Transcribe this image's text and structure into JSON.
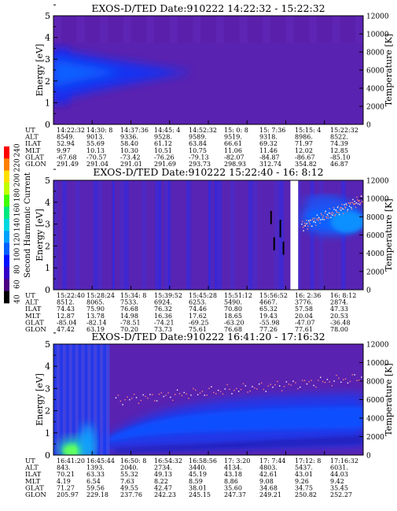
{
  "colorbar": {
    "title": "Second Harmonic Current",
    "ticks": [
      "40",
      "60",
      "80",
      "100",
      "120",
      "140",
      "160",
      "180",
      "200",
      "220",
      "240"
    ],
    "colors": [
      "#000000",
      "#4a0080",
      "#3000c8",
      "#0010ff",
      "#0060ff",
      "#00a0ff",
      "#00d8e0",
      "#00e880",
      "#40ff00",
      "#c0ff00",
      "#ffe000",
      "#ff8000",
      "#ff0000"
    ]
  },
  "panels": [
    {
      "title": "EXOS-D/TED   Date:910222   14:22:32 - 15:22:32",
      "y_label": "Energy [eV]",
      "y2_label": "Temperature [K]",
      "y_ticks": [
        "0",
        "1",
        "2",
        "3",
        "4",
        "5"
      ],
      "y2_ticks": [
        "0",
        "2000",
        "4000",
        "6000",
        "8000",
        "10000",
        "12000"
      ],
      "row_labels": [
        "UT",
        "ALT",
        "ILAT",
        "MLT",
        "GLAT",
        "GLON"
      ],
      "columns": [
        [
          "14:22:32",
          "8549.",
          "52.94",
          "9.97",
          "-67.68",
          "291.49"
        ],
        [
          "14:30: 8",
          "9013.",
          "55.69",
          "10.13",
          "-70.57",
          "291.04"
        ],
        [
          "14:37:36",
          "9336.",
          "58.40",
          "10.30",
          "-73.42",
          "291.01"
        ],
        [
          "14:45: 4",
          "9528.",
          "61.12",
          "10.51",
          "-76.26",
          "291.69"
        ],
        [
          "14:52:32",
          "9589.",
          "63.84",
          "10.75",
          "-79.13",
          "293.73"
        ],
        [
          "15: 0: 8",
          "9519.",
          "66.61",
          "11.06",
          "-82.07",
          "298.93"
        ],
        [
          "15: 7:36",
          "9318.",
          "69.32",
          "11.46",
          "-84.87",
          "312.74"
        ],
        [
          "15:15: 4",
          "8986.",
          "71.97",
          "12.02",
          "-86.67",
          "354.82"
        ],
        [
          "15:22:32",
          "8522.",
          "74.39",
          "12.85",
          "-85.10",
          "46.87"
        ]
      ]
    },
    {
      "title": "EXOS-D/TED   Date:910222   15:22:40 - 16: 8:12",
      "y_label": "Energy [eV]",
      "y2_label": "Temperature [K]",
      "y_ticks": [
        "0",
        "1",
        "2",
        "3",
        "4",
        "5"
      ],
      "y2_ticks": [
        "0",
        "2000",
        "4000",
        "6000",
        "8000",
        "10000",
        "12000"
      ],
      "row_labels": [
        "UT",
        "ALT",
        "ILAT",
        "MLT",
        "GLAT",
        "GLON"
      ],
      "columns": [
        [
          "15:22:40",
          "8512.",
          "74.43",
          "12.87",
          "-85.04",
          "47.42"
        ],
        [
          "15:28:24",
          "8065.",
          "75.90",
          "13.78",
          "-82.14",
          "63.19"
        ],
        [
          "15:34: 8",
          "7533.",
          "76.68",
          "14.98",
          "-78.51",
          "70.20"
        ],
        [
          "15:39:52",
          "6924.",
          "76.32",
          "16.36",
          "-74.21",
          "73.73"
        ],
        [
          "15:45:28",
          "6253.",
          "74.46",
          "17.62",
          "-69.25",
          "75.61"
        ],
        [
          "15:51:12",
          "5490.",
          "70.80",
          "18.65",
          "-63.20",
          "76.68"
        ],
        [
          "15:56:52",
          "4667.",
          "65.32",
          "19.43",
          "-55.98",
          "77.26"
        ],
        [
          "16: 2:36",
          "3776.",
          "57.58",
          "20.04",
          "-47.07",
          "77.61"
        ],
        [
          "16: 8:12",
          "2874.",
          "47.33",
          "20.53",
          "-36.48",
          "78.00"
        ]
      ]
    },
    {
      "title": "EXOS-D/TED   Date:910222   16:41:20 - 17:16:32",
      "y_label": "Energy [eV]",
      "y2_label": "Temperature [K]",
      "y_ticks": [
        "0",
        "1",
        "2",
        "3",
        "4",
        "5"
      ],
      "y2_ticks": [
        "0",
        "2000",
        "4000",
        "6000",
        "8000",
        "10000",
        "12000"
      ],
      "row_labels": [
        "UT",
        "ALT",
        "ILAT",
        "MLT",
        "GLAT",
        "GLON"
      ],
      "columns": [
        [
          "16:41:20",
          "843.",
          "70.21",
          "4.19",
          "71.27",
          "205.97"
        ],
        [
          "16:45:44",
          "1393.",
          "63.33",
          "6.54",
          "59.56",
          "229.18"
        ],
        [
          "16:50: 8",
          "2040.",
          "55.32",
          "7.63",
          "49.55",
          "237.76"
        ],
        [
          "16:54:32",
          "2734.",
          "49.13",
          "8.22",
          "42.47",
          "242.23"
        ],
        [
          "16:58:56",
          "3440.",
          "45.19",
          "8.59",
          "38.01",
          "245.15"
        ],
        [
          "17: 3:20",
          "4134.",
          "43.18",
          "8.86",
          "35.60",
          "247.37"
        ],
        [
          "17: 7:44",
          "4803.",
          "42.61",
          "9.08",
          "34.68",
          "249.21"
        ],
        [
          "17:12: 8",
          "5437.",
          "43.01",
          "9.26",
          "34.75",
          "250.82"
        ],
        [
          "17:16:32",
          "6031.",
          "44.03",
          "9.42",
          "35.45",
          "252.27"
        ]
      ]
    }
  ],
  "chart_data": [
    {
      "type": "heatmap",
      "title": "EXOS-D/TED   Date:910222   14:22:32 - 15:22:32",
      "xlabel": "UT",
      "ylabel": "Energy [eV]",
      "y2label": "Temperature [K]",
      "ylim": [
        0,
        5
      ],
      "y2lim": [
        0,
        12000
      ],
      "x": [
        "14:22:32",
        "14:30: 8",
        "14:37:36",
        "14:45: 4",
        "14:52:32",
        "15: 0: 8",
        "15: 7:36",
        "15:15: 4",
        "15:22:32"
      ],
      "features": [
        {
          "kind": "enhanced-band",
          "x_range": [
            0,
            0.2
          ],
          "y_range": [
            1.0,
            3.5
          ],
          "level": "high"
        },
        {
          "kind": "enhanced-band",
          "x_range": [
            0.2,
            0.45
          ],
          "y_range": [
            1.5,
            3.2
          ],
          "level": "medium"
        }
      ]
    },
    {
      "type": "heatmap",
      "title": "EXOS-D/TED   Date:910222   15:22:40 - 16: 8:12",
      "xlabel": "UT",
      "ylabel": "Energy [eV]",
      "y2label": "Temperature [K]",
      "ylim": [
        0,
        5
      ],
      "y2lim": [
        0,
        12000
      ],
      "x": [
        "15:22:40",
        "15:28:24",
        "15:34: 8",
        "15:39:52",
        "15:45:28",
        "15:51:12",
        "15:56:52",
        "16: 2:36",
        "16: 8:12"
      ],
      "features": [
        {
          "kind": "data-gap",
          "x_range": [
            0.765,
            0.79
          ]
        },
        {
          "kind": "enhanced-band",
          "x_range": [
            0.8,
            1.0
          ],
          "y_range": [
            2.8,
            5.0
          ],
          "level": "high"
        },
        {
          "kind": "vertical-stripes",
          "x_range": [
            0.0,
            0.75
          ],
          "level": "low"
        }
      ],
      "temperature_points": {
        "x_range": [
          0.8,
          1.0
        ],
        "temp_range": [
          7000,
          10000
        ]
      }
    },
    {
      "type": "heatmap",
      "title": "EXOS-D/TED   Date:910222   16:41:20 - 17:16:32",
      "xlabel": "UT",
      "ylabel": "Energy [eV]",
      "y2label": "Temperature [K]",
      "ylim": [
        0,
        5
      ],
      "y2lim": [
        0,
        12000
      ],
      "x": [
        "16:41:20",
        "16:45:44",
        "16:50: 8",
        "16:54:32",
        "16:58:56",
        "17: 3:20",
        "17: 7:44",
        "17:12: 8",
        "17:16:32"
      ],
      "features": [
        {
          "kind": "intense-low-energy",
          "x_range": [
            0.0,
            0.18
          ],
          "y_range": [
            0,
            1.5
          ],
          "level": "very-high"
        },
        {
          "kind": "enhanced-band",
          "x_range": [
            0.18,
            1.0
          ],
          "y_range": [
            0.5,
            2.7
          ],
          "level": "medium"
        }
      ],
      "temperature_points": {
        "x_range": [
          0.2,
          1.0
        ],
        "temp_range": [
          6000,
          8400
        ]
      }
    }
  ]
}
